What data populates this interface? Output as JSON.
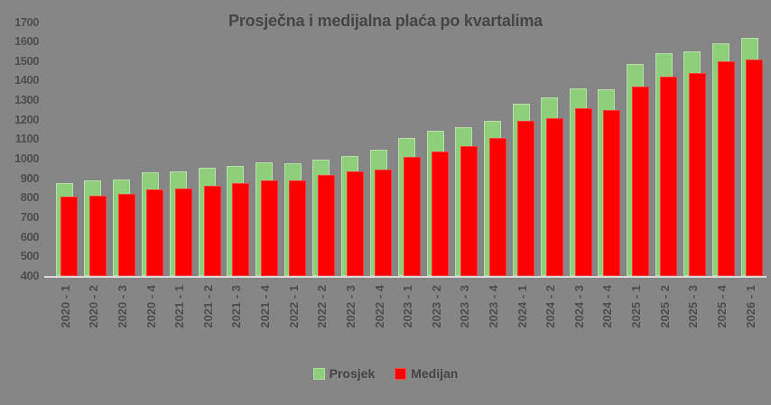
{
  "chart_data": {
    "type": "bar",
    "title": "Prosječna i medijalna plaća po kvartalima",
    "categories": [
      "2020 - 1",
      "2020 - 2",
      "2020 - 3",
      "2020 - 4",
      "2021 - 1",
      "2021 - 2",
      "2021 - 3",
      "2021 - 4",
      "2022 - 1",
      "2022 - 2",
      "2022 - 3",
      "2022 - 4",
      "2023 - 1",
      "2023 - 2",
      "2023 - 3",
      "2023 - 4",
      "2024 - 1",
      "2024 - 2",
      "2024 - 3",
      "2024 - 4",
      "2025 - 1",
      "2025 - 2",
      "2025 - 3",
      "2025 - 4",
      "2026 - 1"
    ],
    "series": [
      {
        "name": "Prosjek",
        "color": "#8fce7b",
        "values": [
          875,
          890,
          895,
          930,
          935,
          955,
          965,
          980,
          975,
          995,
          1015,
          1045,
          1105,
          1145,
          1160,
          1195,
          1280,
          1315,
          1360,
          1355,
          1485,
          1540,
          1550,
          1590,
          1620
        ]
      },
      {
        "name": "Medijan",
        "color": "#fe0000",
        "values": [
          805,
          810,
          820,
          845,
          850,
          860,
          875,
          890,
          890,
          915,
          935,
          945,
          1010,
          1035,
          1065,
          1105,
          1195,
          1210,
          1260,
          1250,
          1370,
          1420,
          1440,
          1500,
          1510
        ]
      }
    ],
    "xlabel": "",
    "ylabel": "",
    "ylim": [
      400,
      1700
    ],
    "ytick_step": 100,
    "grid": false,
    "legend_position": "bottom",
    "bar_layout": "overlapped",
    "x_tick_rotation_deg": 90
  },
  "colors": {
    "background": "#868686",
    "text": "#454545",
    "axis_line": "#d9d9d9",
    "prosjek_fill": "#8fce7b",
    "medijan_fill": "#fe0000"
  }
}
